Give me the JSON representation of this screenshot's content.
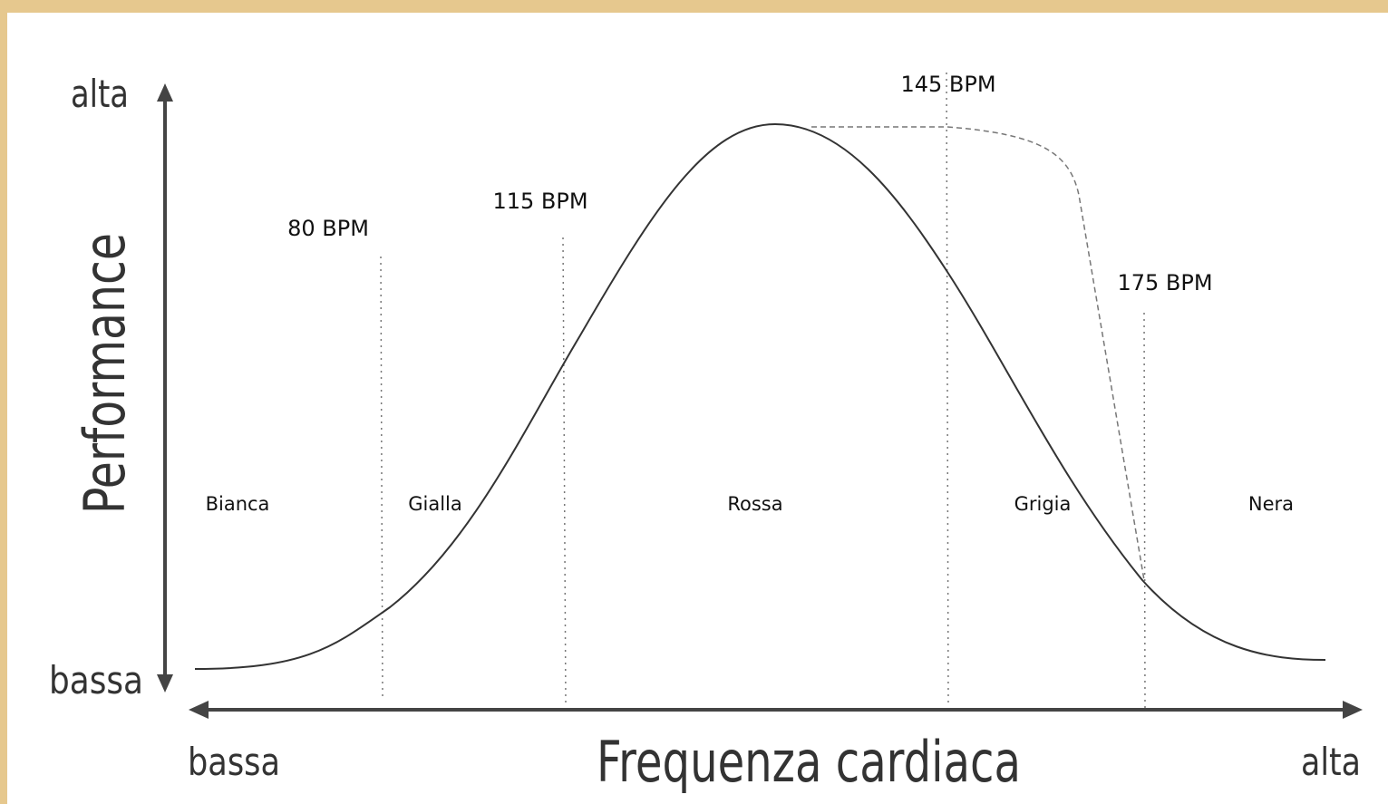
{
  "y_axis": {
    "label": "Performance",
    "high": "alta",
    "low": "bassa"
  },
  "x_axis": {
    "label": "Frequenza cardiaca",
    "low": "bassa",
    "high": "alta"
  },
  "thresholds": [
    {
      "label": "80 BPM"
    },
    {
      "label": "115 BPM"
    },
    {
      "label": "145 BPM"
    },
    {
      "label": "175 BPM"
    }
  ],
  "zones": [
    "Bianca",
    "Gialla",
    "Rossa",
    "Grigia",
    "Nera"
  ]
}
